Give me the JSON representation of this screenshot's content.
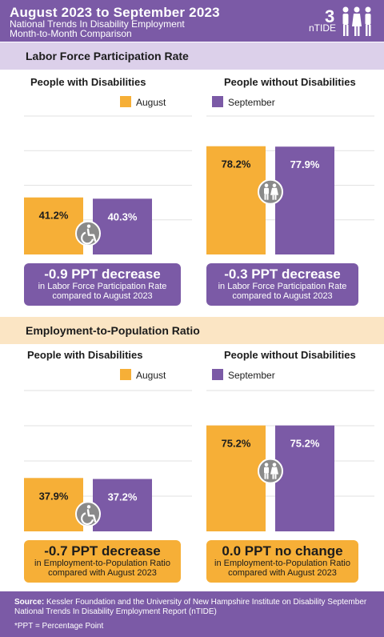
{
  "header": {
    "title": "August 2023 to September 2023",
    "subtitle_line1": "National Trends In Disability Employment",
    "subtitle_line2": "Month-to-Month Comparison",
    "logo_text": "nTIDE"
  },
  "colors": {
    "august": "#f6af37",
    "september": "#7b5aa6",
    "purple_band": "#dcd0ea",
    "orange_band": "#fbe5c4"
  },
  "chart_data": [
    {
      "type": "bar",
      "title": "Labor Force Participation Rate",
      "groups": [
        "People with Disabilities",
        "People without Disabilities"
      ],
      "series": [
        {
          "name": "August",
          "values": [
            41.2,
            78.2
          ]
        },
        {
          "name": "September",
          "values": [
            40.3,
            77.9
          ]
        }
      ],
      "value_labels": [
        [
          "41.2%",
          "40.3%"
        ],
        [
          "78.2%",
          "77.9%"
        ]
      ],
      "group_icons": [
        "wheelchair-icon",
        "people-icon"
      ],
      "ylim": [
        0,
        100
      ],
      "legend": [
        "August",
        "September"
      ],
      "callouts": [
        {
          "headline": "-0.9 PPT decrease",
          "line1": "in Labor Force Participation Rate",
          "line2": "compared to August 2023"
        },
        {
          "headline": "-0.3 PPT decrease",
          "line1": "in Labor Force Participation Rate",
          "line2": "compared to August 2023"
        }
      ]
    },
    {
      "type": "bar",
      "title": "Employment-to-Population Ratio",
      "groups": [
        "People with Disabilities",
        "People without Disabilities"
      ],
      "series": [
        {
          "name": "August",
          "values": [
            37.9,
            75.2
          ]
        },
        {
          "name": "September",
          "values": [
            37.2,
            75.2
          ]
        }
      ],
      "value_labels": [
        [
          "37.9%",
          "37.2%"
        ],
        [
          "75.2%",
          "75.2%"
        ]
      ],
      "group_icons": [
        "wheelchair-icon",
        "people-icon"
      ],
      "ylim": [
        0,
        100
      ],
      "legend": [
        "August",
        "September"
      ],
      "callouts": [
        {
          "headline": "-0.7 PPT decrease",
          "line1": "in Employment-to-Population Ratio",
          "line2": "compared with August 2023"
        },
        {
          "headline": "0.0 PPT no change",
          "line1": "in Employment-to-Population Ratio",
          "line2": "compared with August 2023"
        }
      ]
    }
  ],
  "footer": {
    "source_label": "Source:",
    "source_text": "Kessler Foundation and the University of New Hampshire Institute on Disability September National Trends In Disability Employment Report (nTIDE)",
    "ppt_note": "*PPT = Percentage Point"
  }
}
